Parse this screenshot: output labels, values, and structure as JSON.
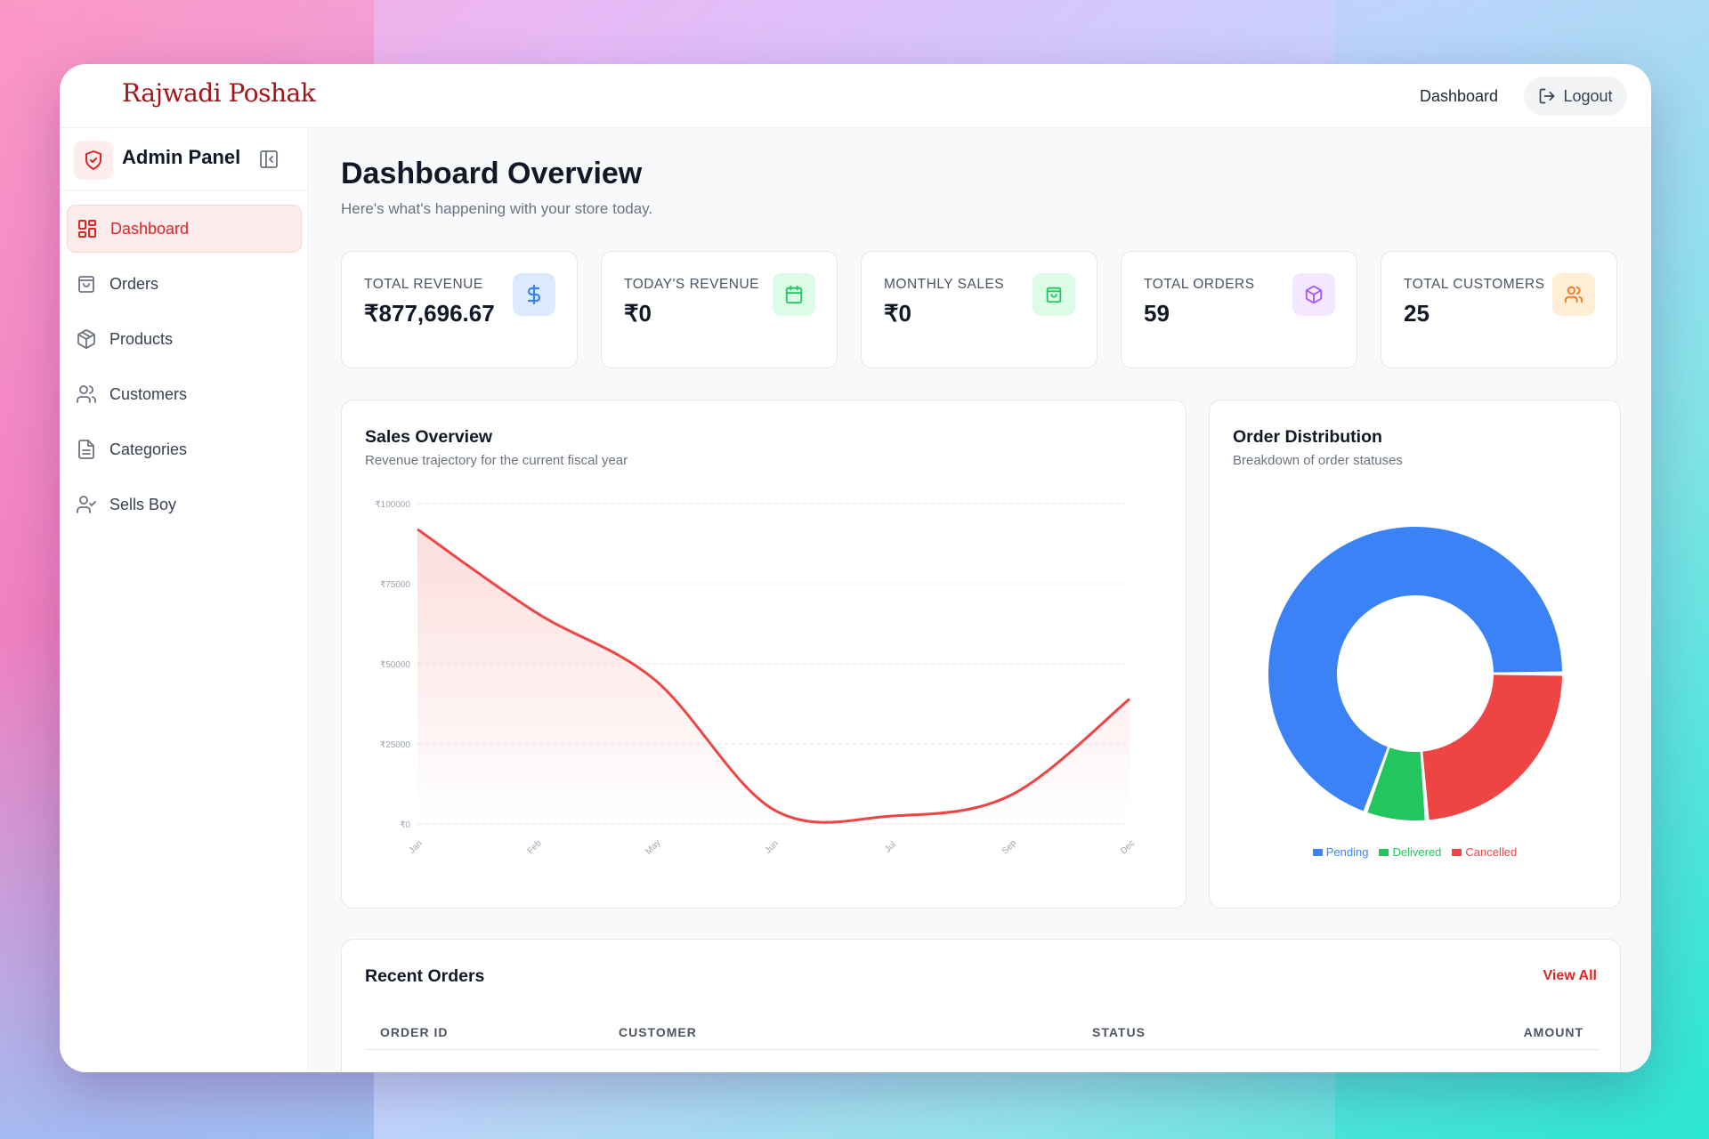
{
  "brand": "Rajwadi Poshak",
  "topnav": {
    "dashboard_link": "Dashboard",
    "logout_label": "Logout"
  },
  "sidebar": {
    "title": "Admin Panel",
    "items": [
      {
        "label": "Dashboard",
        "icon": "dashboard-grid-icon",
        "active": true
      },
      {
        "label": "Orders",
        "icon": "shopping-bag-icon"
      },
      {
        "label": "Products",
        "icon": "package-box-icon"
      },
      {
        "label": "Customers",
        "icon": "users-icon"
      },
      {
        "label": "Categories",
        "icon": "document-icon"
      },
      {
        "label": "Sells Boy",
        "icon": "user-check-icon"
      }
    ]
  },
  "page": {
    "title": "Dashboard Overview",
    "subtitle": "Here's what's happening with your store today."
  },
  "stats": [
    {
      "label": "Total Revenue",
      "value": "₹877,696.67",
      "icon": "dollar-icon",
      "color": "#3b82f6",
      "bg": "#dbeafe"
    },
    {
      "label": "Today's Revenue",
      "value": "₹0",
      "icon": "calendar-icon",
      "color": "#22c55e",
      "bg": "#dcfce7"
    },
    {
      "label": "Monthly Sales",
      "value": "₹0",
      "icon": "shopping-bag-icon",
      "color": "#22c55e",
      "bg": "#dcfce7"
    },
    {
      "label": "Total Orders",
      "value": "59",
      "icon": "package-icon",
      "color": "#a855f7",
      "bg": "#f3e8ff"
    },
    {
      "label": "Total Customers",
      "value": "25",
      "icon": "users-icon",
      "color": "#f97316",
      "bg": "#ffedd5"
    }
  ],
  "sales_panel": {
    "title": "Sales Overview",
    "subtitle": "Revenue trajectory for the current fiscal year"
  },
  "distribution_panel": {
    "title": "Order Distribution",
    "subtitle": "Breakdown of order statuses"
  },
  "recent_orders": {
    "title": "Recent Orders",
    "view_all": "View All",
    "columns": [
      "Order ID",
      "Customer",
      "Status",
      "Amount"
    ]
  },
  "chart_data": [
    {
      "type": "area",
      "title": "Sales Overview",
      "x": [
        "Jan",
        "Feb",
        "May",
        "Jun",
        "Jul",
        "Sep",
        "Dec"
      ],
      "series": [
        {
          "values": [
            92000,
            66000,
            45000,
            4500,
            2500,
            9000,
            39000
          ]
        }
      ],
      "ylim": [
        0,
        100000
      ],
      "yticks": [
        "₹0",
        "₹25000",
        "₹50000",
        "₹75000",
        "₹100000"
      ],
      "grid": true,
      "line_color": "#ef4444"
    },
    {
      "type": "pie",
      "title": "Order Distribution",
      "donut": true,
      "legend_position": "bottom",
      "slices": [
        {
          "name": "Pending",
          "value": 41,
          "color": "#3b82f6"
        },
        {
          "name": "Delivered",
          "value": 4,
          "color": "#22c55e"
        },
        {
          "name": "Cancelled",
          "value": 14,
          "color": "#ef4444"
        }
      ]
    }
  ]
}
